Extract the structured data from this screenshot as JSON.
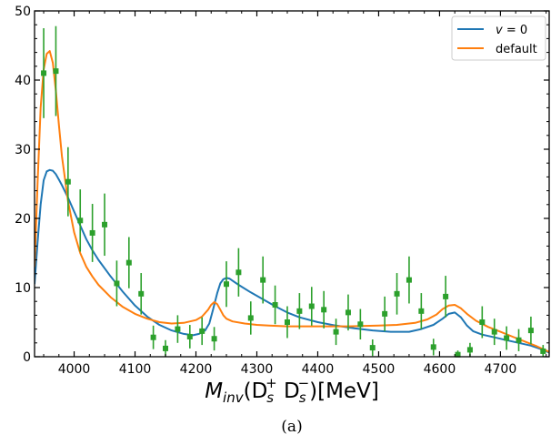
{
  "chart_data": {
    "type": "scatter",
    "title": "",
    "xlabel": "M_inv(D_s^+ D_s^-)[MeV]",
    "xlabel_parts": {
      "main": "M",
      "sub": "inv",
      "open": "(D",
      "s1": "s",
      "sup1": "+",
      "d2": " D",
      "s2": "s",
      "sup2": "−",
      "close": ")[MeV]"
    },
    "ylabel": "",
    "xlim": [
      3935,
      4780
    ],
    "ylim": [
      0,
      50
    ],
    "x_ticks": [
      4000,
      4100,
      4200,
      4300,
      4400,
      4500,
      4600,
      4700
    ],
    "y_ticks": [
      0,
      10,
      20,
      30,
      40,
      50
    ],
    "grid": false,
    "legend_position": "top-right",
    "caption": "(a)",
    "data_points": {
      "name": "",
      "color": "#2ca02c",
      "x": [
        3950,
        3970,
        3990,
        4010,
        4030,
        4050,
        4070,
        4090,
        4110,
        4130,
        4150,
        4170,
        4190,
        4210,
        4230,
        4250,
        4270,
        4290,
        4310,
        4330,
        4350,
        4370,
        4390,
        4410,
        4430,
        4450,
        4470,
        4490,
        4510,
        4530,
        4550,
        4570,
        4590,
        4610,
        4630,
        4650,
        4670,
        4690,
        4710,
        4730,
        4750,
        4770
      ],
      "y": [
        41.0,
        41.3,
        25.3,
        19.7,
        17.9,
        19.1,
        10.6,
        13.6,
        9.1,
        2.8,
        1.2,
        4.0,
        2.9,
        3.7,
        2.6,
        10.5,
        12.2,
        5.6,
        11.1,
        7.5,
        5.0,
        6.6,
        7.3,
        6.8,
        3.6,
        6.4,
        4.7,
        1.3,
        6.2,
        9.1,
        11.1,
        6.6,
        1.4,
        8.7,
        0.3,
        1.0,
        5.0,
        3.6,
        2.7,
        2.4,
        3.8,
        0.8
      ],
      "err": [
        6.5,
        6.5,
        5.0,
        4.5,
        4.2,
        4.5,
        3.3,
        3.7,
        3.0,
        1.7,
        1.2,
        2.0,
        1.7,
        2.0,
        1.7,
        3.3,
        3.5,
        2.4,
        3.4,
        2.8,
        2.3,
        2.6,
        2.8,
        2.7,
        1.9,
        2.6,
        2.2,
        1.2,
        2.5,
        3.0,
        3.4,
        2.6,
        1.2,
        3.0,
        0.6,
        1.0,
        2.3,
        1.9,
        1.7,
        1.6,
        2.0,
        0.9
      ]
    },
    "series": [
      {
        "name": "v = 0",
        "name_parts": {
          "var": "v",
          "rest": " = 0"
        },
        "color": "#1f77b4",
        "x": [
          3935,
          3940,
          3945,
          3950,
          3955,
          3960,
          3965,
          3970,
          3975,
          3980,
          3990,
          4000,
          4010,
          4020,
          4030,
          4040,
          4060,
          4080,
          4100,
          4120,
          4140,
          4160,
          4180,
          4195,
          4205,
          4215,
          4222,
          4228,
          4235,
          4240,
          4245,
          4250,
          4255,
          4260,
          4270,
          4290,
          4310,
          4330,
          4350,
          4370,
          4400,
          4430,
          4460,
          4490,
          4520,
          4550,
          4570,
          4590,
          4605,
          4615,
          4625,
          4635,
          4645,
          4655,
          4670,
          4690,
          4710,
          4730,
          4750,
          4770,
          4780
        ],
        "y": [
          10.5,
          16.5,
          22.0,
          25.5,
          26.8,
          27.0,
          26.9,
          26.4,
          25.6,
          24.8,
          23.0,
          21.0,
          19.0,
          17.0,
          15.4,
          14.0,
          11.6,
          9.4,
          7.4,
          5.8,
          4.6,
          3.8,
          3.3,
          3.1,
          3.3,
          3.8,
          4.8,
          6.8,
          9.2,
          10.6,
          11.2,
          11.4,
          11.3,
          11.0,
          10.4,
          9.3,
          8.3,
          7.3,
          6.4,
          5.7,
          5.0,
          4.5,
          4.1,
          3.8,
          3.6,
          3.6,
          4.0,
          4.6,
          5.5,
          6.2,
          6.4,
          5.7,
          4.5,
          3.7,
          3.2,
          2.8,
          2.4,
          2.0,
          1.6,
          1.0,
          0.6
        ]
      },
      {
        "name": "default",
        "color": "#ff7f0e",
        "x": [
          3935,
          3940,
          3945,
          3950,
          3955,
          3960,
          3965,
          3970,
          3975,
          3980,
          3990,
          4000,
          4010,
          4020,
          4030,
          4040,
          4060,
          4080,
          4100,
          4120,
          4140,
          4160,
          4180,
          4200,
          4210,
          4220,
          4225,
          4230,
          4235,
          4240,
          4245,
          4250,
          4260,
          4280,
          4300,
          4320,
          4350,
          4400,
          4450,
          4500,
          4530,
          4560,
          4580,
          4595,
          4605,
          4615,
          4625,
          4635,
          4645,
          4660,
          4680,
          4700,
          4720,
          4740,
          4760,
          4780
        ],
        "y": [
          13.0,
          25.0,
          36.0,
          41.5,
          43.8,
          44.2,
          42.5,
          38.5,
          33.5,
          29.0,
          22.5,
          18.0,
          15.0,
          13.0,
          11.6,
          10.4,
          8.6,
          7.2,
          6.2,
          5.5,
          5.0,
          4.8,
          4.9,
          5.3,
          5.8,
          6.8,
          7.5,
          7.9,
          7.6,
          6.8,
          6.0,
          5.5,
          5.1,
          4.8,
          4.6,
          4.5,
          4.4,
          4.4,
          4.4,
          4.5,
          4.6,
          4.9,
          5.4,
          6.1,
          6.9,
          7.4,
          7.5,
          7.0,
          6.2,
          5.2,
          4.3,
          3.6,
          2.9,
          2.2,
          1.5,
          0.7
        ]
      }
    ]
  }
}
